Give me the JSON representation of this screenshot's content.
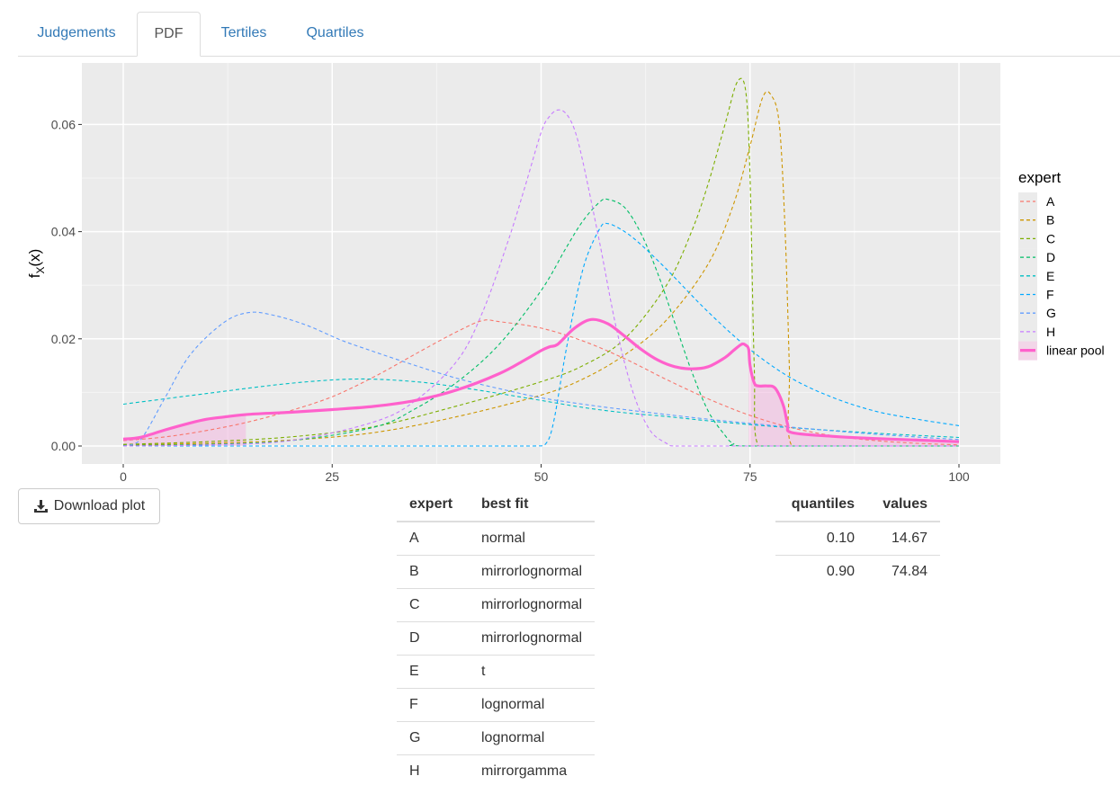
{
  "tabs": [
    {
      "label": "Judgements",
      "active": false
    },
    {
      "label": "PDF",
      "active": true
    },
    {
      "label": "Tertiles",
      "active": false
    },
    {
      "label": "Quartiles",
      "active": false
    }
  ],
  "download_label": "Download plot",
  "download_icon": "download-icon",
  "chart_data": {
    "type": "line",
    "xlabel": "",
    "ylabel": "f_X(x)",
    "xlim": [
      0,
      100
    ],
    "ylim": [
      0,
      0.068
    ],
    "x_ticks": [
      "0",
      "25",
      "50",
      "75",
      "100"
    ],
    "y_ticks": [
      "0.00",
      "0.02",
      "0.04",
      "0.06"
    ],
    "grid": true,
    "legend_title": "expert",
    "legend_position": "right",
    "shaded_tails": {
      "lower_quantile": 14.67,
      "upper_quantile": 74.84
    },
    "series": [
      {
        "name": "A",
        "color": "#F8766D",
        "style": "dashed",
        "x": [
          0,
          5,
          10,
          15,
          20,
          25,
          30,
          35,
          40,
          43,
          45,
          50,
          55,
          60,
          65,
          70,
          75,
          80,
          85,
          90,
          95,
          100
        ],
        "y": [
          0.001,
          0.0017,
          0.0029,
          0.0045,
          0.0066,
          0.0092,
          0.0129,
          0.0172,
          0.0214,
          0.0234,
          0.0232,
          0.022,
          0.0196,
          0.0163,
          0.0124,
          0.0088,
          0.0057,
          0.0034,
          0.0019,
          0.001,
          0.0005,
          0.0002
        ]
      },
      {
        "name": "B",
        "color": "#CD9600",
        "style": "dashed",
        "x": [
          0,
          10,
          20,
          30,
          40,
          50,
          55,
          60,
          65,
          70,
          73,
          75,
          76.5,
          77.5,
          78.5,
          79.2,
          79.7,
          80,
          85,
          100
        ],
        "y": [
          0.0002,
          0.0005,
          0.0011,
          0.0025,
          0.0055,
          0.0095,
          0.0125,
          0.017,
          0.0235,
          0.034,
          0.045,
          0.056,
          0.065,
          0.0655,
          0.06,
          0.04,
          0.015,
          0.0,
          0.0,
          0.0
        ]
      },
      {
        "name": "C",
        "color": "#7CAE00",
        "style": "dashed",
        "x": [
          0,
          10,
          20,
          30,
          40,
          50,
          55,
          60,
          65,
          68,
          70,
          72,
          73.5,
          74.5,
          75,
          75.5,
          76,
          80,
          100
        ],
        "y": [
          0.0003,
          0.0008,
          0.0017,
          0.0036,
          0.0075,
          0.012,
          0.015,
          0.02,
          0.03,
          0.04,
          0.049,
          0.06,
          0.068,
          0.066,
          0.05,
          0.015,
          0.0,
          0.0,
          0.0
        ]
      },
      {
        "name": "D",
        "color": "#00BE67",
        "style": "dashed",
        "x": [
          0,
          10,
          20,
          30,
          35,
          40,
          45,
          50,
          53,
          55,
          57,
          58,
          60,
          62,
          64,
          66,
          68,
          70,
          72,
          73,
          75,
          100
        ],
        "y": [
          0.0001,
          0.0003,
          0.001,
          0.0035,
          0.007,
          0.012,
          0.019,
          0.029,
          0.037,
          0.042,
          0.0455,
          0.046,
          0.0445,
          0.0395,
          0.032,
          0.023,
          0.014,
          0.0065,
          0.002,
          0.0005,
          0.0,
          0.0
        ]
      },
      {
        "name": "E",
        "color": "#00BFC4",
        "style": "dashed",
        "x": [
          0,
          10,
          20,
          28,
          35,
          40,
          45,
          50,
          55,
          60,
          65,
          70,
          75,
          80,
          90,
          100
        ],
        "y": [
          0.0078,
          0.0098,
          0.0117,
          0.0125,
          0.012,
          0.011,
          0.0098,
          0.0085,
          0.0072,
          0.0062,
          0.0055,
          0.0047,
          0.004,
          0.0034,
          0.0024,
          0.0016
        ]
      },
      {
        "name": "F",
        "color": "#00A9FF",
        "style": "dashed",
        "x": [
          0,
          40,
          49,
          50.5,
          51.5,
          53,
          55,
          57,
          58,
          60,
          62,
          65,
          70,
          75,
          80,
          85,
          90,
          95,
          100
        ],
        "y": [
          0.0,
          0.0,
          0.0,
          0.0003,
          0.0045,
          0.018,
          0.033,
          0.0405,
          0.0415,
          0.04,
          0.0375,
          0.033,
          0.025,
          0.018,
          0.0126,
          0.009,
          0.0065,
          0.005,
          0.0038
        ]
      },
      {
        "name": "G",
        "color": "#619CFF",
        "style": "dashed",
        "x": [
          0,
          2,
          5,
          8,
          12,
          15,
          18,
          22,
          26,
          30,
          35,
          40,
          45,
          50,
          55,
          60,
          70,
          80,
          90,
          100
        ],
        "y": [
          0.0,
          0.001,
          0.009,
          0.017,
          0.023,
          0.0249,
          0.0244,
          0.0225,
          0.0198,
          0.0176,
          0.015,
          0.0126,
          0.0107,
          0.009,
          0.0078,
          0.0068,
          0.005,
          0.0035,
          0.0022,
          0.0012
        ]
      },
      {
        "name": "H",
        "color": "#C77CFF",
        "style": "dashed",
        "x": [
          0,
          10,
          20,
          30,
          35,
          40,
          43,
          46,
          48,
          50,
          51,
          52,
          53,
          54,
          55,
          57,
          59,
          61,
          63,
          65,
          66,
          70,
          100
        ],
        "y": [
          0.0,
          0.0002,
          0.001,
          0.0045,
          0.0085,
          0.016,
          0.025,
          0.038,
          0.048,
          0.0585,
          0.0615,
          0.0627,
          0.062,
          0.059,
          0.053,
          0.038,
          0.022,
          0.01,
          0.003,
          0.0005,
          0.0,
          0.0,
          0.0
        ]
      },
      {
        "name": "linear pool",
        "color": "#FF61CC",
        "style": "solid-thick",
        "x": [
          0,
          2,
          5,
          8,
          10,
          12,
          15,
          20,
          25,
          30,
          35,
          40,
          45,
          48,
          50,
          51,
          52,
          54,
          56,
          58,
          60,
          62,
          64,
          66,
          68,
          70,
          72,
          73,
          74,
          74.5,
          74.84,
          75,
          75.5,
          76,
          77,
          78,
          79,
          79.5,
          80,
          85,
          90,
          95,
          100
        ],
        "y": [
          0.0013,
          0.0016,
          0.003,
          0.0043,
          0.005,
          0.0054,
          0.0059,
          0.0063,
          0.0068,
          0.0074,
          0.0085,
          0.0105,
          0.0135,
          0.016,
          0.0178,
          0.0185,
          0.019,
          0.022,
          0.0236,
          0.0228,
          0.0205,
          0.018,
          0.016,
          0.0148,
          0.0144,
          0.0148,
          0.0165,
          0.0178,
          0.019,
          0.0188,
          0.018,
          0.015,
          0.0118,
          0.0112,
          0.0112,
          0.0108,
          0.0075,
          0.004,
          0.0025,
          0.0018,
          0.0014,
          0.0011,
          0.0008
        ]
      }
    ]
  },
  "fit_table": {
    "headers": [
      "expert",
      "best fit"
    ],
    "rows": [
      [
        "A",
        "normal"
      ],
      [
        "B",
        "mirrorlognormal"
      ],
      [
        "C",
        "mirrorlognormal"
      ],
      [
        "D",
        "mirrorlognormal"
      ],
      [
        "E",
        "t"
      ],
      [
        "F",
        "lognormal"
      ],
      [
        "G",
        "lognormal"
      ],
      [
        "H",
        "mirrorgamma"
      ]
    ]
  },
  "quantile_table": {
    "headers": [
      "quantiles",
      "values"
    ],
    "rows": [
      [
        "0.10",
        "14.67"
      ],
      [
        "0.90",
        "74.84"
      ]
    ]
  }
}
